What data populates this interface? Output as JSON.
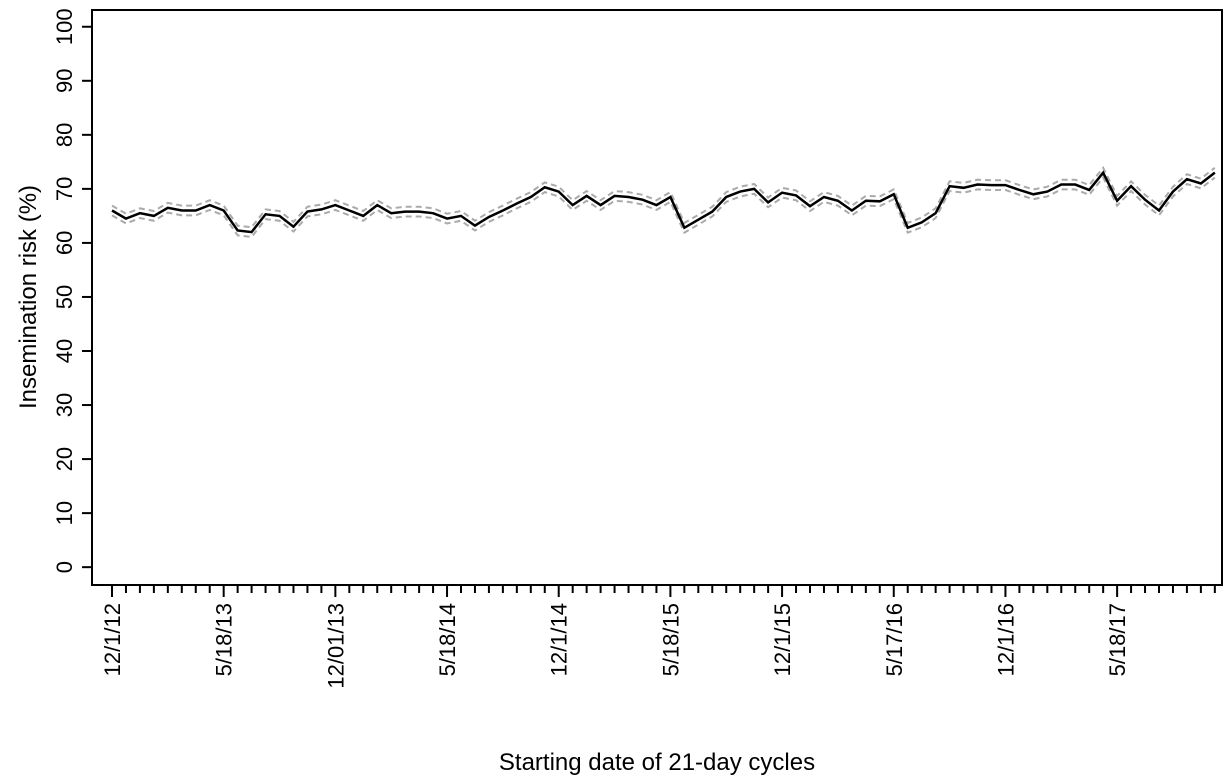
{
  "chart_data": {
    "type": "line",
    "x_label": "Starting date of 21-day cycles",
    "y_label": "Insemination risk (%)",
    "categories": [
      "12/1/12",
      null,
      null,
      null,
      null,
      null,
      null,
      null,
      "5/18/13",
      null,
      null,
      null,
      null,
      null,
      null,
      null,
      "12/01/13",
      null,
      null,
      null,
      null,
      null,
      null,
      null,
      "5/18/14",
      null,
      null,
      null,
      null,
      null,
      null,
      null,
      "12/1/14",
      null,
      null,
      null,
      null,
      null,
      null,
      null,
      "5/18/15",
      null,
      null,
      null,
      null,
      null,
      null,
      null,
      "12/1/15",
      null,
      null,
      null,
      null,
      null,
      null,
      null,
      "5/17/16",
      null,
      null,
      null,
      null,
      null,
      null,
      null,
      "12/1/16",
      null,
      null,
      null,
      null,
      null,
      null,
      null,
      "5/18/17",
      null,
      null,
      null,
      null,
      null,
      null,
      null
    ],
    "series": [
      {
        "color": "#000000",
        "dashed": false,
        "values": [
          66,
          64.5,
          65.5,
          65,
          66.5,
          66,
          66,
          67,
          66,
          62.3,
          62,
          65.3,
          65,
          63,
          65.8,
          66.2,
          67,
          66,
          65,
          67,
          65.5,
          65.8,
          65.8,
          65.5,
          64.5,
          65,
          63.2,
          64.8,
          66,
          67.3,
          68.5,
          70.3,
          69.5,
          67,
          68.7,
          67,
          68.7,
          68.5,
          68,
          67,
          68.5,
          62.8,
          64.3,
          65.8,
          68.5,
          69.5,
          70,
          67.5,
          69.3,
          68.8,
          66.8,
          68.5,
          67.8,
          66,
          67.8,
          67.7,
          69,
          62.8,
          63.8,
          65.5,
          70.5,
          70.2,
          70.8,
          70.7,
          70.7,
          69.8,
          69,
          69.5,
          70.8,
          70.8,
          69.8,
          73,
          67.8,
          70.5,
          68,
          66,
          69.5,
          71.8,
          71,
          73
        ]
      },
      {
        "color": "#aaaaaa",
        "dashed": true,
        "values": [
          66.9,
          65.4,
          66.4,
          65.9,
          67.4,
          66.9,
          66.9,
          67.9,
          66.9,
          63.2,
          62.9,
          66.2,
          65.9,
          63.9,
          66.7,
          67.1,
          67.9,
          66.9,
          65.9,
          67.9,
          66.4,
          66.7,
          66.7,
          66.4,
          65.4,
          65.9,
          64.1,
          65.7,
          66.9,
          68.2,
          69.4,
          71.2,
          70.4,
          67.9,
          69.6,
          67.9,
          69.6,
          69.4,
          68.9,
          67.9,
          69.4,
          63.7,
          65.2,
          66.7,
          69.4,
          70.4,
          70.9,
          68.4,
          70.2,
          69.7,
          67.7,
          69.4,
          68.7,
          66.9,
          68.7,
          68.6,
          69.9,
          63.7,
          64.7,
          66.4,
          71.4,
          71.1,
          71.7,
          71.6,
          71.6,
          70.7,
          69.9,
          70.4,
          71.7,
          71.7,
          70.7,
          73.9,
          68.7,
          71.4,
          68.9,
          66.9,
          70.4,
          72.7,
          71.9,
          73.9
        ]
      },
      {
        "color": "#aaaaaa",
        "dashed": true,
        "values": [
          65.1,
          63.6,
          64.6,
          64.1,
          65.6,
          65.1,
          65.1,
          66.1,
          65.1,
          61.4,
          61.1,
          64.4,
          64.1,
          62.1,
          64.9,
          65.3,
          66.1,
          65.1,
          64.1,
          66.1,
          64.6,
          64.9,
          64.9,
          64.6,
          63.6,
          64.1,
          62.3,
          63.9,
          65.1,
          66.4,
          67.6,
          69.4,
          68.6,
          66.1,
          67.8,
          66.1,
          67.8,
          67.6,
          67.1,
          66.1,
          67.6,
          61.9,
          63.4,
          64.9,
          67.6,
          68.6,
          69.1,
          66.6,
          68.4,
          67.9,
          65.9,
          67.6,
          66.9,
          65.1,
          66.9,
          66.8,
          68.1,
          61.9,
          62.9,
          64.6,
          69.6,
          69.3,
          69.9,
          69.8,
          69.8,
          68.9,
          68.1,
          68.6,
          69.9,
          69.9,
          68.9,
          72.1,
          66.9,
          69.6,
          67.1,
          65.1,
          68.6,
          70.9,
          70.1,
          72.1
        ]
      }
    ],
    "ylim": [
      -3.3,
      103.1
    ],
    "yticks": [
      0,
      10,
      20,
      30,
      40,
      50,
      60,
      70,
      80,
      90,
      100
    ],
    "grid": false
  }
}
